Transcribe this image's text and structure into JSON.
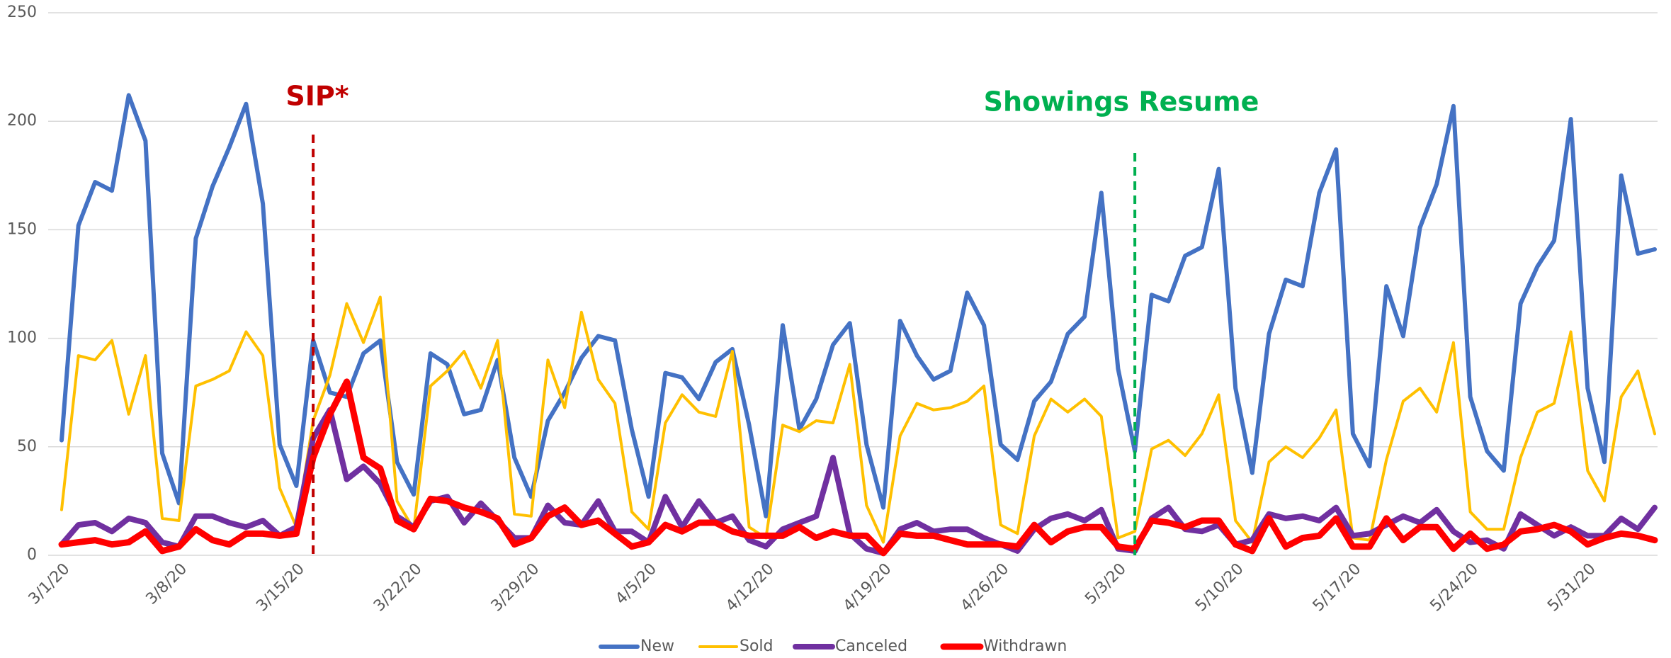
{
  "chart_data": {
    "type": "line",
    "categories": [
      "3/1/20",
      null,
      null,
      null,
      null,
      null,
      null,
      "3/8/20",
      null,
      null,
      null,
      null,
      null,
      null,
      "3/15/20",
      null,
      null,
      null,
      null,
      null,
      null,
      "3/22/20",
      null,
      null,
      null,
      null,
      null,
      null,
      "3/29/20",
      null,
      null,
      null,
      null,
      null,
      null,
      "4/5/20",
      null,
      null,
      null,
      null,
      null,
      null,
      "4/12/20",
      null,
      null,
      null,
      null,
      null,
      null,
      "4/19/20",
      null,
      null,
      null,
      null,
      null,
      null,
      "4/26/20",
      null,
      null,
      null,
      null,
      null,
      null,
      "5/3/20",
      null,
      null,
      null,
      null,
      null,
      null,
      "5/10/20",
      null,
      null,
      null,
      null,
      null,
      null,
      "5/17/20",
      null,
      null,
      null,
      null,
      null,
      null,
      "5/24/20",
      null,
      null,
      null,
      null,
      null,
      null,
      "5/31/20",
      null,
      null,
      null,
      null
    ],
    "series": [
      {
        "name": "New",
        "color": "#4472c4",
        "values": [
          53,
          152,
          172,
          168,
          212,
          191,
          47,
          24,
          146,
          170,
          188,
          208,
          162,
          51,
          32,
          99,
          75,
          73,
          93,
          99,
          43,
          28,
          93,
          88,
          65,
          67,
          90,
          45,
          27,
          62,
          75,
          91,
          101,
          99,
          58,
          27,
          84,
          82,
          72,
          89,
          95,
          60,
          18,
          106,
          58,
          72,
          97,
          107,
          51,
          22,
          108,
          92,
          81,
          85,
          121,
          106,
          51,
          44,
          71,
          80,
          102,
          110,
          167,
          86,
          48,
          120,
          117,
          138,
          142,
          178,
          77,
          38,
          102,
          127,
          124,
          167,
          187,
          56,
          41,
          124,
          101,
          151,
          171,
          207,
          73,
          48,
          39,
          116,
          133,
          145,
          201,
          77,
          43,
          175,
          139,
          141
        ]
      },
      {
        "name": "Sold",
        "color": "#ffc000",
        "values": [
          21,
          92,
          90,
          99,
          65,
          92,
          17,
          16,
          78,
          81,
          85,
          103,
          92,
          31,
          13,
          62,
          83,
          116,
          98,
          119,
          25,
          12,
          78,
          85,
          94,
          77,
          99,
          19,
          18,
          90,
          68,
          112,
          81,
          70,
          20,
          12,
          61,
          74,
          66,
          64,
          94,
          13,
          8,
          60,
          57,
          62,
          61,
          88,
          23,
          6,
          55,
          70,
          67,
          68,
          71,
          78,
          14,
          10,
          55,
          72,
          66,
          72,
          64,
          8,
          11,
          49,
          53,
          46,
          56,
          74,
          16,
          6,
          43,
          50,
          45,
          54,
          67,
          8,
          7,
          44,
          71,
          77,
          66,
          98,
          20,
          12,
          12,
          45,
          66,
          70,
          103,
          39,
          25,
          73,
          85,
          56
        ]
      },
      {
        "name": "Canceled",
        "color": "#7030a0",
        "values": [
          5,
          14,
          15,
          11,
          17,
          15,
          6,
          4,
          18,
          18,
          15,
          13,
          16,
          9,
          13,
          54,
          67,
          35,
          41,
          33,
          18,
          13,
          25,
          27,
          15,
          24,
          16,
          8,
          8,
          23,
          15,
          14,
          25,
          11,
          11,
          6,
          27,
          13,
          25,
          15,
          18,
          7,
          4,
          12,
          15,
          18,
          45,
          10,
          3,
          1,
          12,
          15,
          11,
          12,
          12,
          8,
          5,
          2,
          12,
          17,
          19,
          16,
          21,
          3,
          2,
          17,
          22,
          12,
          11,
          14,
          5,
          7,
          19,
          17,
          18,
          16,
          22,
          9,
          10,
          14,
          18,
          15,
          21,
          11,
          6,
          7,
          3,
          19,
          14,
          9,
          13,
          9,
          9,
          17,
          12,
          22
        ]
      },
      {
        "name": "Withdrawn",
        "color": "#ff0000",
        "values": [
          5,
          6,
          7,
          5,
          6,
          11,
          2,
          4,
          12,
          7,
          5,
          10,
          10,
          9,
          10,
          45,
          65,
          80,
          45,
          40,
          16,
          12,
          26,
          25,
          22,
          20,
          17,
          5,
          8,
          18,
          22,
          14,
          16,
          10,
          4,
          6,
          14,
          11,
          15,
          15,
          11,
          9,
          9,
          9,
          13,
          8,
          11,
          9,
          9,
          1,
          10,
          9,
          9,
          7,
          5,
          5,
          5,
          4,
          14,
          6,
          11,
          13,
          13,
          4,
          3,
          16,
          15,
          13,
          16,
          16,
          5,
          2,
          17,
          4,
          8,
          9,
          17,
          4,
          4,
          17,
          7,
          13,
          13,
          3,
          10,
          3,
          5,
          11,
          12,
          14,
          11,
          5,
          8,
          10,
          9,
          7
        ]
      }
    ],
    "ylim": [
      0,
      250
    ],
    "yticks": [
      0,
      50,
      100,
      150,
      200,
      250
    ],
    "grid": true,
    "legend": "bottom",
    "annotations": [
      {
        "text": "SIP*",
        "color": "#c00000"
      },
      {
        "text": "Showings Resume",
        "color": "#00b050"
      }
    ]
  }
}
